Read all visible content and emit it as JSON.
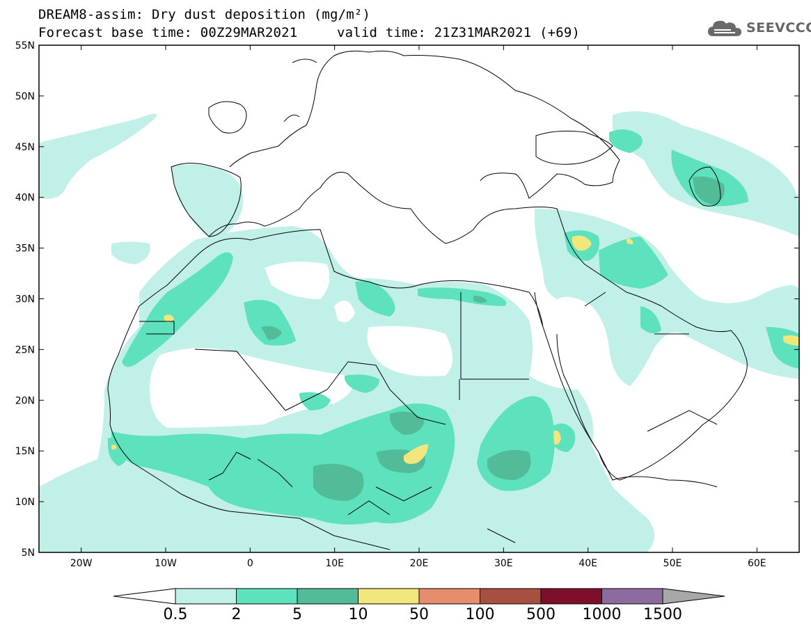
{
  "header": {
    "title_line1": "DREAM8-assim: Dry dust deposition (mg/m²)",
    "title_line2": "Forecast base time: 00Z29MAR2021",
    "title_line3": "valid time: 21Z31MAR2021 (+69)",
    "logo_text": "SEEVCCC",
    "logo_icon": "cloud-logo-icon"
  },
  "map": {
    "projection": "equirectangular",
    "lon_range": [
      -25,
      65
    ],
    "lat_range": [
      5,
      55
    ],
    "lat_ticks": [
      "5N",
      "10N",
      "15N",
      "20N",
      "25N",
      "30N",
      "35N",
      "40N",
      "45N",
      "50N",
      "55N"
    ],
    "lon_ticks": [
      "20W",
      "10W",
      "0",
      "10E",
      "20E",
      "30E",
      "40E",
      "50E",
      "60E"
    ]
  },
  "legend": {
    "bins": [
      {
        "color": "#c0f0e8"
      },
      {
        "color": "#5ee2bd"
      },
      {
        "color": "#52bb98"
      },
      {
        "color": "#f1e77c"
      },
      {
        "color": "#e58d6c"
      },
      {
        "color": "#a74f41"
      },
      {
        "color": "#7d0f2b"
      },
      {
        "color": "#8d6b9e"
      }
    ],
    "labels": [
      "0.5",
      "2",
      "5",
      "10",
      "50",
      "100",
      "500",
      "1000",
      "1500"
    ],
    "low_arrow_color": "#ffffff",
    "high_arrow_color": "#a8a8a8"
  }
}
